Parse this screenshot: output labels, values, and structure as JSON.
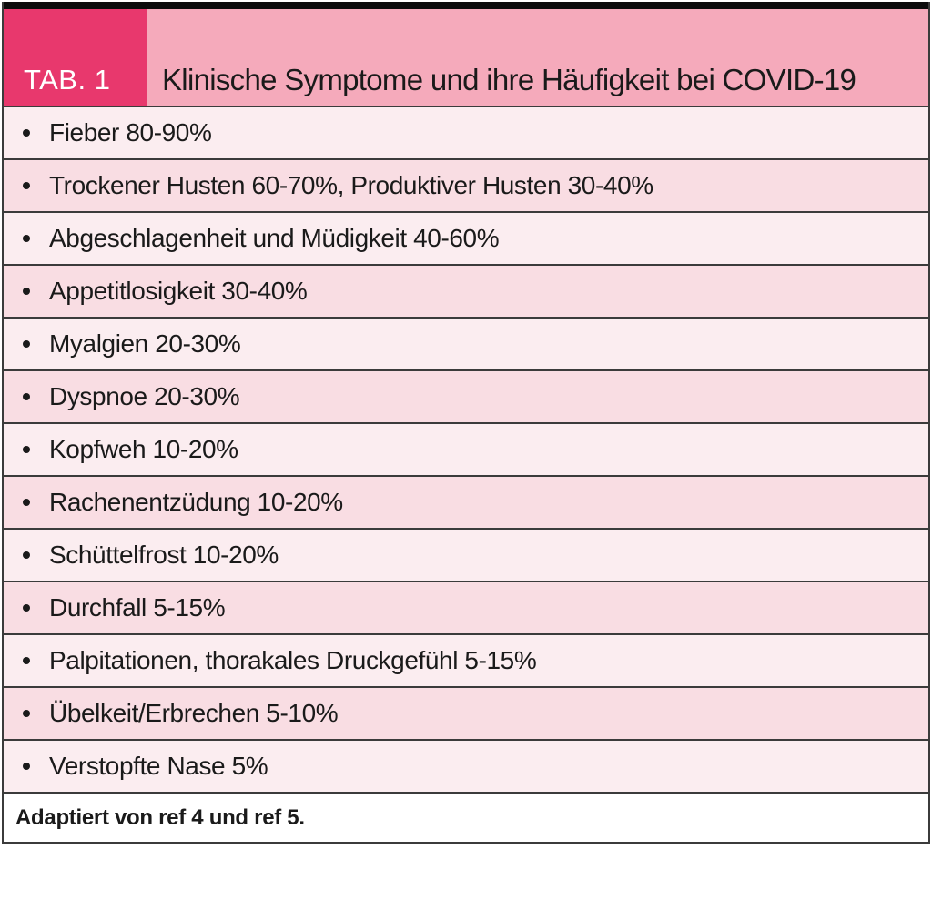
{
  "table": {
    "tag": "TAB. 1",
    "title": "Klinische Symptome und ihre Häufigkeit bei COVID-19",
    "rows": [
      "Fieber 80-90%",
      "Trockener Husten 60-70%, Produktiver Husten 30-40%",
      "Abgeschlagenheit und Müdigkeit 40-60%",
      "Appetitlosigkeit 30-40%",
      "Myalgien 20-30%",
      "Dyspnoe 20-30%",
      "Kopfweh 10-20%",
      "Rachenentzüdung 10-20%",
      "Schüttelfrost 10-20%",
      "Durchfall 5-15%",
      "Palpitationen, thorakales Druckgefühl 5-15%",
      "Übelkeit/Erbrechen 5-10%",
      "Verstopfte Nase 5%"
    ],
    "footnote": "Adaptiert von ref 4 und ref 5.",
    "colors": {
      "tag_bg": "#e8386d",
      "header_bg": "#f5aabb",
      "row_light": "#fbedf0",
      "row_dark": "#f9dde3",
      "border": "#3b3b3b",
      "top_bar": "#0c0c0c"
    }
  }
}
